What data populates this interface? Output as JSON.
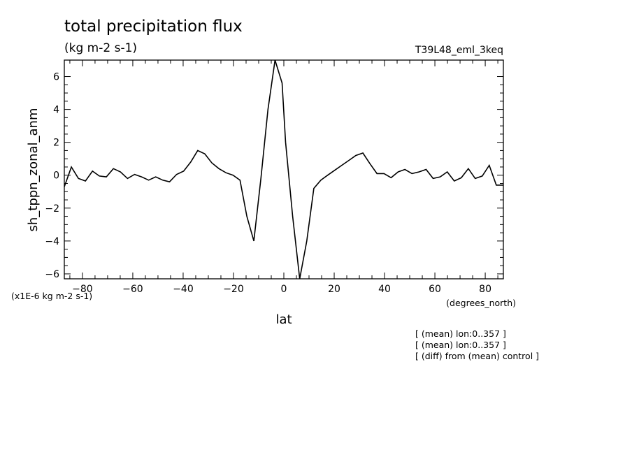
{
  "chart_data": {
    "type": "line",
    "title": "total precipitation flux",
    "units": "(kg m-2 s-1)",
    "run_label": "T39L48_eml_3keq",
    "xlabel": "lat",
    "xunits": "(degrees_north)",
    "ylabel": "sh_tppn_zonal_anm",
    "scale_note": "(x1E-6 kg m-2 s-1)",
    "notes": [
      "[ (mean) lon:0..357 ]",
      "[ (mean) lon:0..357 ]",
      "[ (diff) from (mean) control ]"
    ],
    "xlim": [
      -87.2,
      87.2
    ],
    "ylim": [
      -6.3,
      7.0
    ],
    "x_ticks": [
      -80,
      -60,
      -40,
      -20,
      0,
      20,
      40,
      60,
      80
    ],
    "y_ticks": [
      -6,
      -4,
      -2,
      0,
      2,
      4,
      6
    ],
    "grid": false,
    "series": [
      {
        "x": [
          -87.2,
          -84.4,
          -81.6,
          -78.8,
          -76.0,
          -73.3,
          -70.5,
          -67.7,
          -64.9,
          -62.1,
          -59.3,
          -56.5,
          -53.7,
          -50.9,
          -48.1,
          -45.4,
          -42.6,
          -39.8,
          -37.0,
          -34.2,
          -31.4,
          -28.6,
          -25.8,
          -23.0,
          -20.2,
          -17.4,
          -14.7,
          -11.9,
          -9.1,
          -6.3,
          -3.5,
          -0.7,
          0.7,
          3.5,
          6.3,
          9.1,
          11.9,
          14.7,
          17.4,
          20.2,
          23.0,
          25.8,
          28.6,
          31.4,
          34.2,
          37.0,
          39.8,
          42.6,
          45.4,
          48.1,
          50.9,
          53.7,
          56.5,
          59.3,
          62.1,
          64.9,
          67.7,
          70.5,
          73.3,
          76.0,
          78.8,
          81.6,
          84.4,
          87.2
        ],
        "y": [
          -0.7,
          0.5,
          -0.2,
          -0.35,
          0.25,
          -0.05,
          -0.1,
          0.4,
          0.2,
          -0.2,
          0.05,
          -0.1,
          -0.3,
          -0.1,
          -0.3,
          -0.4,
          0.05,
          0.25,
          0.8,
          1.5,
          1.3,
          0.75,
          0.4,
          0.15,
          0.0,
          -0.3,
          -2.5,
          -4.0,
          -0.2,
          4.0,
          7.0,
          5.6,
          2.0,
          -2.5,
          -6.3,
          -4.0,
          -0.8,
          -0.3,
          0.0,
          0.3,
          0.6,
          0.9,
          1.2,
          1.35,
          0.7,
          0.1,
          0.1,
          -0.15,
          0.2,
          0.35,
          0.1,
          0.2,
          0.35,
          -0.2,
          -0.1,
          0.2,
          -0.35,
          -0.15,
          0.4,
          -0.2,
          -0.05,
          0.6,
          -0.6,
          -0.6
        ]
      }
    ]
  }
}
